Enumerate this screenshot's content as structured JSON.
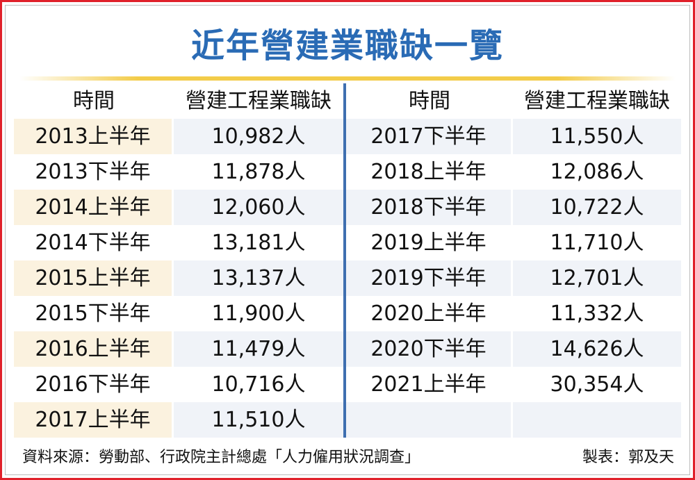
{
  "title": "近年營建業職缺一覽",
  "headers": {
    "time": "時間",
    "vacancies": "營建工程業職缺"
  },
  "footer": {
    "source": "資料來源：勞動部、行政院主計總處「人力僱用狀況調查」",
    "credit": "製表：郭及天"
  },
  "colors": {
    "title": "#2a6bb5",
    "border": "#e0202a",
    "divider": "#3f6fb0",
    "gold_rule": "#f3cc4a",
    "left_shade": "#fbf2df",
    "right_shade": "#f0f3f8"
  },
  "chart_data": {
    "type": "table",
    "title": "近年營建業職缺一覽",
    "columns": [
      "時間",
      "營建工程業職缺"
    ],
    "rows": [
      [
        "2013上半年",
        "10,982人"
      ],
      [
        "2013下半年",
        "11,878人"
      ],
      [
        "2014上半年",
        "12,060人"
      ],
      [
        "2014下半年",
        "13,181人"
      ],
      [
        "2015上半年",
        "13,137人"
      ],
      [
        "2015下半年",
        "11,900人"
      ],
      [
        "2016上半年",
        "11,479人"
      ],
      [
        "2016下半年",
        "10,716人"
      ],
      [
        "2017上半年",
        "11,510人"
      ],
      [
        "2017下半年",
        "11,550人"
      ],
      [
        "2018上半年",
        "12,086人"
      ],
      [
        "2018下半年",
        "10,722人"
      ],
      [
        "2019上半年",
        "11,710人"
      ],
      [
        "2019下半年",
        "12,701人"
      ],
      [
        "2020上半年",
        "11,332人"
      ],
      [
        "2020下半年",
        "14,626人"
      ],
      [
        "2021上半年",
        "30,354人"
      ]
    ],
    "values": [
      10982,
      11878,
      12060,
      13181,
      13137,
      11900,
      11479,
      10716,
      11510,
      11550,
      12086,
      10722,
      11710,
      12701,
      11332,
      14626,
      30354
    ]
  }
}
